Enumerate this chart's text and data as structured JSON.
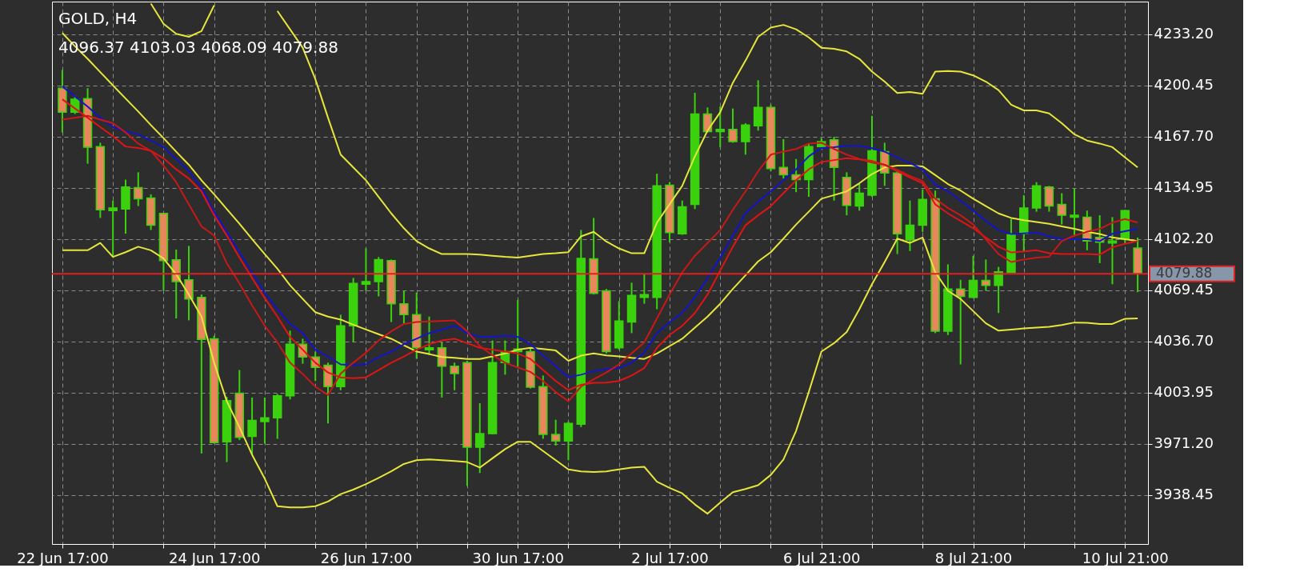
{
  "chart_data": {
    "type": "candlestick",
    "title": "GOLD, H4",
    "subtitle": "4096.37 4103.03 4068.09 4079.88",
    "categories": [
      "22 Jun 17:00",
      null,
      null,
      null,
      null,
      null,
      null,
      null,
      null,
      null,
      null,
      null,
      "24 Jun 17:00",
      null,
      null,
      null,
      null,
      null,
      null,
      null,
      null,
      null,
      null,
      null,
      "26 Jun 17:00",
      null,
      null,
      null,
      null,
      null,
      null,
      null,
      null,
      null,
      null,
      null,
      "30 Jun 17:00",
      null,
      null,
      null,
      null,
      null,
      null,
      null,
      null,
      null,
      null,
      null,
      "2 Jul 17:00",
      null,
      null,
      null,
      null,
      null,
      null,
      null,
      null,
      null,
      null,
      null,
      "6 Jul 21:00",
      null,
      null,
      null,
      null,
      null,
      null,
      null,
      null,
      null,
      null,
      null,
      "8 Jul 21:00",
      null,
      null,
      null,
      null,
      null,
      null,
      null,
      null,
      null,
      null,
      null,
      "10 Jul 21:00",
      null
    ],
    "ohlc": [
      [
        4198.6,
        4210.3,
        4170.3,
        4183.2
      ],
      [
        4183.2,
        4193.8,
        4182.1,
        4191.5
      ],
      [
        4192.0,
        4198.6,
        4150.3,
        4160.9
      ],
      [
        4161.3,
        4163.7,
        4115.6,
        4120.8
      ],
      [
        4120.3,
        4126.7,
        4091.4,
        4122.0
      ],
      [
        4121.3,
        4140.1,
        4105.5,
        4135.4
      ],
      [
        4135.0,
        4144.8,
        4123.2,
        4127.9
      ],
      [
        4128.4,
        4130.7,
        4107.9,
        4110.9
      ],
      [
        4118.5,
        4118.9,
        4069.0,
        4088.3
      ],
      [
        4088.8,
        4095.4,
        4051.3,
        4074.9
      ],
      [
        4076.0,
        4097.7,
        4050.1,
        4063.8
      ],
      [
        4064.7,
        4066.6,
        3964.9,
        4037.9
      ],
      [
        4038.3,
        4040.2,
        3971.2,
        3971.9
      ],
      [
        3972.4,
        4001.1,
        3959.4,
        3998.8
      ],
      [
        4003.5,
        4018.3,
        3973.5,
        3975.2
      ],
      [
        3975.9,
        4000.7,
        3964.1,
        3986.1
      ],
      [
        3985.3,
        4000.7,
        3971.2,
        3987.7
      ],
      [
        3987.7,
        4003.0,
        3974.3,
        4001.8
      ],
      [
        4001.8,
        4043.5,
        3999.5,
        4034.8
      ],
      [
        4034.8,
        4038.3,
        4022.3,
        4026.6
      ],
      [
        4026.6,
        4030.1,
        4011.3,
        4020.0
      ],
      [
        4021.4,
        4023.0,
        3984.2,
        4007.7
      ],
      [
        4007.7,
        4053.7,
        4005.4,
        4046.6
      ],
      [
        4046.6,
        4077.2,
        4036.0,
        4073.7
      ],
      [
        4073.2,
        4096.1,
        4069.0,
        4074.9
      ],
      [
        4074.9,
        4090.6,
        4065.4,
        4089.0
      ],
      [
        4088.3,
        4089.0,
        4049.0,
        4060.7
      ],
      [
        4060.7,
        4069.0,
        4047.8,
        4053.7
      ],
      [
        4053.7,
        4067.8,
        4025.4,
        4032.5
      ],
      [
        4031.3,
        4052.5,
        4027.8,
        4032.5
      ],
      [
        4032.5,
        4036.0,
        4000.7,
        4020.7
      ],
      [
        4020.7,
        4023.0,
        4005.4,
        4016.0
      ],
      [
        4023.0,
        4024.2,
        3944.1,
        3968.9
      ],
      [
        3968.9,
        3997.1,
        3952.4,
        3977.6
      ],
      [
        3977.6,
        4037.2,
        3977.1,
        4023.0
      ],
      [
        4023.0,
        4037.2,
        4015.3,
        4030.1
      ],
      [
        4030.1,
        4063.1,
        4019.5,
        4031.8
      ],
      [
        4030.1,
        4032.5,
        4006.5,
        4007.3
      ],
      [
        4007.7,
        4014.8,
        3974.3,
        3977.1
      ],
      [
        3977.1,
        3986.5,
        3970.0,
        3972.9
      ],
      [
        3972.9,
        3985.3,
        3960.6,
        3984.2
      ],
      [
        3983.7,
        4107.9,
        3981.8,
        4089.7
      ],
      [
        4089.5,
        4115.6,
        4066.6,
        4067.3
      ],
      [
        4069.0,
        4070.2,
        4028.9,
        4030.1
      ],
      [
        4032.5,
        4062.4,
        4031.3,
        4049.7
      ],
      [
        4049.0,
        4074.2,
        4041.9,
        4066.1
      ],
      [
        4064.7,
        4079.6,
        4060.7,
        4066.6
      ],
      [
        4064.7,
        4143.9,
        4057.2,
        4136.1
      ],
      [
        4136.6,
        4138.5,
        4100.1,
        4106.2
      ],
      [
        4105.5,
        4126.7,
        4104.8,
        4122.7
      ],
      [
        4124.3,
        4195.7,
        4121.3,
        4182.1
      ],
      [
        4182.1,
        4186.3,
        4170.3,
        4170.8
      ],
      [
        4170.8,
        4186.8,
        4160.9,
        4172.2
      ],
      [
        4172.2,
        4185.6,
        4163.7,
        4164.4
      ],
      [
        4164.4,
        4176.2,
        4156.1,
        4175.0
      ],
      [
        4174.5,
        4203.7,
        4171.5,
        4186.3
      ],
      [
        4186.3,
        4188.0,
        4145.5,
        4147.2
      ],
      [
        4147.9,
        4166.0,
        4140.8,
        4143.2
      ],
      [
        4143.2,
        4153.3,
        4132.1,
        4140.1
      ],
      [
        4140.1,
        4163.2,
        4129.1,
        4161.3
      ],
      [
        4161.3,
        4166.8,
        4159.7,
        4164.4
      ],
      [
        4165.6,
        4167.5,
        4126.7,
        4147.9
      ],
      [
        4141.5,
        4144.8,
        4117.3,
        4123.6
      ],
      [
        4123.2,
        4137.3,
        4120.3,
        4131.4
      ],
      [
        4130.2,
        4180.9,
        4129.1,
        4158.5
      ],
      [
        4158.0,
        4163.7,
        4136.1,
        4144.4
      ],
      [
        4144.4,
        4146.3,
        4092.5,
        4105.5
      ],
      [
        4101.5,
        4126.7,
        4094.4,
        4110.9
      ],
      [
        4110.9,
        4133.8,
        4106.7,
        4127.4
      ],
      [
        4127.9,
        4133.1,
        4041.9,
        4043.1
      ],
      [
        4043.1,
        4085.9,
        4040.7,
        4070.2
      ],
      [
        4070.2,
        4076.0,
        4021.9,
        4065.4
      ],
      [
        4064.7,
        4091.4,
        4064.3,
        4075.6
      ],
      [
        4075.6,
        4089.0,
        4069.0,
        4072.5
      ],
      [
        4072.5,
        4084.3,
        4054.8,
        4081.2
      ],
      [
        4080.8,
        4114.9,
        4080.8,
        4104.8
      ],
      [
        4105.5,
        4130.2,
        4093.7,
        4122.0
      ],
      [
        4122.0,
        4138.5,
        4119.6,
        4136.1
      ],
      [
        4135.4,
        4136.1,
        4119.6,
        4123.2
      ],
      [
        4124.3,
        4131.4,
        4111.4,
        4117.3
      ],
      [
        4116.1,
        4134.5,
        4104.3,
        4117.3
      ],
      [
        4116.1,
        4120.3,
        4094.9,
        4100.8
      ],
      [
        4103.1,
        4117.3,
        4086.7,
        4100.1
      ],
      [
        4099.6,
        4116.1,
        4073.2,
        4100.8
      ],
      [
        4102.0,
        4120.8,
        4099.6,
        4120.3
      ],
      [
        4096.37,
        4103.03,
        4068.09,
        4079.88
      ]
    ],
    "colors": [
      "#e8865c",
      "#3ad20c",
      "#e8865c",
      "#e8865c",
      "#3ad20c",
      "#3ad20c",
      "#e8865c",
      "#e8865c",
      "#e8865c",
      "#e8865c",
      "#e8865c",
      "#e8865c",
      "#e8865c",
      "#3ad20c",
      "#e8865c",
      "#3ad20c",
      "#3ad20c",
      "#3ad20c",
      "#3ad20c",
      "#e8865c",
      "#e8865c",
      "#e8865c",
      "#3ad20c",
      "#3ad20c",
      "#3ad20c",
      "#3ad20c",
      "#e8865c",
      "#e8865c",
      "#e8865c",
      "#3ad20c",
      "#e8865c",
      "#e8865c",
      "#e8865c",
      "#3ad20c",
      "#3ad20c",
      "#3ad20c",
      "#3ad20c",
      "#e8865c",
      "#e8865c",
      "#e8865c",
      "#3ad20c",
      "#3ad20c",
      "#e8865c",
      "#e8865c",
      "#3ad20c",
      "#3ad20c",
      "#3ad20c",
      "#3ad20c",
      "#e8865c",
      "#3ad20c",
      "#3ad20c",
      "#e8865c",
      "#3ad20c",
      "#e8865c",
      "#3ad20c",
      "#3ad20c",
      "#e8865c",
      "#e8865c",
      "#e8865c",
      "#3ad20c",
      "#3ad20c",
      "#e8865c",
      "#e8865c",
      "#3ad20c",
      "#3ad20c",
      "#e8865c",
      "#e8865c",
      "#3ad20c",
      "#3ad20c",
      "#e8865c",
      "#3ad20c",
      "#e8865c",
      "#3ad20c",
      "#e8865c",
      "#3ad20c",
      "#3ad20c",
      "#3ad20c",
      "#3ad20c",
      "#e8865c",
      "#e8865c",
      "#3ad20c",
      "#e8865c",
      "#e8865c",
      "#3ad20c",
      "#3ad20c",
      "#e8865c"
    ],
    "series": [
      {
        "type": "line",
        "color": "#e6e63c",
        "values": [
          null,
          null,
          null,
          null,
          null,
          null,
          null,
          4252.7,
          4239.8,
          4233.4,
          4231.5,
          4235.1,
          4251.6,
          null,
          null,
          null,
          null,
          4248.0,
          4236.3,
          4224.5,
          4204.4,
          4179.7,
          4156.1,
          4147.9,
          4139.7,
          4129.1,
          4118.5,
          4109.0,
          4100.8,
          4096.1,
          4092.5,
          4092.5,
          4092.5,
          4092.1,
          4091.4,
          4090.7,
          4090.2,
          4091.4,
          4092.5,
          4093.0,
          4093.7,
          4103.8,
          4106.7,
          4100.5,
          4096.1,
          4093.0,
          4093.0,
          4112.6,
          4124.3,
          4136.1,
          4155.0,
          4171.5,
          4183.2,
          4202.1,
          4216.2,
          4231.5,
          4237.4,
          4239.1,
          4236.3,
          4231.1,
          4224.5,
          4223.8,
          4222.1,
          4217.4,
          4209.2,
          4202.8,
          4195.5,
          4196.2,
          4195.0,
          4209.2,
          4209.6,
          4209.2,
          4206.8,
          4202.8,
          4197.4,
          4188.0,
          4184.4,
          4184.4,
          4182.5,
          4176.2,
          4169.1,
          4165.1,
          4163.2,
          4160.9,
          4154.3,
          4147.9
        ]
      },
      {
        "type": "line",
        "color": "#e6e63c",
        "values": [
          4233.9,
          4225.4,
          4217.4,
          4208.9,
          4200.4,
          4192.0,
          4183.7,
          4175.0,
          4166.7,
          4158.0,
          4149.6,
          4139.7,
          4130.7,
          4121.3,
          4111.9,
          4102.0,
          4092.5,
          4083.1,
          4072.5,
          4063.8,
          4055.3,
          4052.5,
          4050.6,
          4047.3,
          4044.2,
          4041.2,
          4038.3,
          4034.1,
          4030.1,
          4028.5,
          4026.6,
          4026.1,
          4025.4,
          4025.4,
          4027.0,
          4028.9,
          4031.3,
          4032.5,
          4031.8,
          4030.8,
          4024.2,
          4027.5,
          4028.9,
          4027.7,
          4027.0,
          4026.1,
          4025.4,
          4028.9,
          4033.6,
          4038.3,
          4045.4,
          4052.5,
          4060.7,
          4070.2,
          4078.9,
          4087.8,
          4093.7,
          4102.4,
          4111.4,
          4119.6,
          4127.9,
          4130.2,
          4132.6,
          4137.8,
          4143.7,
          4147.9,
          4149.1,
          4149.1,
          4148.6,
          4143.0,
          4137.3,
          4133.1,
          4127.9,
          4123.2,
          4118.5,
          4115.6,
          4114.2,
          4113.0,
          4111.9,
          4110.2,
          4108.6,
          4106.7,
          4105.3,
          4103.1,
          4102.0,
          4100.8
        ]
      },
      {
        "type": "line",
        "color": "#e6e63c",
        "values": [
          4094.9,
          4094.9,
          4094.9,
          4099.6,
          4090.7,
          4093.7,
          4097.2,
          4094.9,
          4089.7,
          4079.6,
          4066.6,
          4052.5,
          4023.0,
          3998.3,
          3981.8,
          3964.1,
          3948.8,
          3931.2,
          3930.4,
          3930.4,
          3931.2,
          3934.2,
          3938.9,
          3941.8,
          3945.3,
          3949.3,
          3953.5,
          3958.2,
          3960.6,
          3961.1,
          3960.6,
          3960.1,
          3959.4,
          3955.9,
          3961.8,
          3967.7,
          3972.4,
          3972.4,
          3966.5,
          3960.6,
          3954.7,
          3953.5,
          3953.1,
          3953.5,
          3954.7,
          3955.9,
          3956.4,
          3946.9,
          3942.9,
          3939.4,
          3932.3,
          3926.4,
          3933.5,
          3940.1,
          3942.2,
          3944.6,
          3951.2,
          3961.1,
          3979.4,
          4004.2,
          4030.1,
          4035.5,
          4042.6,
          4057.2,
          4073.2,
          4087.4,
          4102.4,
          4099.6,
          4103.1,
          4080.8,
          4069.0,
          4063.8,
          4056.0,
          4048.2,
          4043.5,
          4044.2,
          4044.9,
          4045.4,
          4045.9,
          4047.1,
          4048.7,
          4048.5,
          4047.8,
          4047.8,
          4051.1,
          4051.3
        ]
      },
      {
        "type": "line",
        "color": "#1414c8",
        "values": [
          4199.7,
          4193.4,
          4186.8,
          4179.7,
          4173.8,
          4170.8,
          4169.1,
          4165.1,
          4160.9,
          4153.3,
          4145.5,
          4134.9,
          4119.6,
          4106.7,
          4093.7,
          4080.8,
          4067.8,
          4057.2,
          4047.8,
          4041.9,
          4031.3,
          4027.0,
          4021.9,
          4021.4,
          4021.9,
          4026.6,
          4030.1,
          4034.8,
          4038.3,
          4041.9,
          4044.2,
          4046.6,
          4041.9,
          4039.5,
          4039.5,
          4040.2,
          4039.5,
          4034.8,
          4027.7,
          4020.7,
          4013.6,
          4015.3,
          4017.6,
          4019.0,
          4019.5,
          4023.0,
          4029.4,
          4041.9,
          4048.9,
          4054.8,
          4064.7,
          4077.2,
          4090.2,
          4104.3,
          4118.5,
          4126.0,
          4132.6,
          4139.7,
          4146.7,
          4155.0,
          4160.4,
          4160.9,
          4161.8,
          4161.8,
          4160.2,
          4158.0,
          4154.3,
          4150.7,
          4146.7,
          4136.8,
          4132.6,
          4126.7,
          4120.3,
          4113.7,
          4107.8,
          4105.3,
          4105.7,
          4106.2,
          4103.8,
          4102.0,
          4102.0,
          4102.0,
          4100.8,
          4105.5,
          4107.1,
          4108.6
        ]
      },
      {
        "type": "line",
        "color": "#e01414",
        "values": [
          4191.5,
          4185.6,
          4179.7,
          4173.8,
          4167.9,
          4161.3,
          4160.4,
          4158.5,
          4153.8,
          4146.7,
          4140.8,
          4132.6,
          4117.3,
          4104.3,
          4090.2,
          4077.2,
          4064.3,
          4052.5,
          4039.5,
          4031.3,
          4023.0,
          4016.7,
          4013.6,
          4013.1,
          4013.6,
          4018.3,
          4023.0,
          4027.0,
          4031.3,
          4034.8,
          4037.2,
          4038.3,
          4035.5,
          4032.5,
          4031.3,
          4030.1,
          4028.9,
          4025.4,
          4018.3,
          4011.3,
          4005.4,
          4008.9,
          4010.1,
          4010.3,
          4011.3,
          4014.8,
          4019.5,
          4032.5,
          4040.7,
          4046.6,
          4054.8,
          4066.6,
          4081.9,
          4097.2,
          4110.9,
          4117.3,
          4123.2,
          4131.4,
          4139.7,
          4146.7,
          4151.4,
          4152.6,
          4153.8,
          4153.1,
          4152.1,
          4149.6,
          4145.5,
          4141.5,
          4137.8,
          4124.3,
          4118.5,
          4113.7,
          4109.0,
          4103.1,
          4097.2,
          4093.5,
          4094.2,
          4094.9,
          4093.0,
          4092.5,
          4092.5,
          4092.5,
          4092.1,
          4096.8,
          4099.1,
          4100.8
        ]
      },
      {
        "type": "line",
        "color": "#c81818",
        "values": [
          4178.5,
          4179.7,
          4180.9,
          4178.5,
          4176.2,
          4170.3,
          4163.2,
          4158.5,
          4149.1,
          4138.5,
          4124.3,
          4110.2,
          4104.3,
          4086.6,
          4073.7,
          4059.6,
          4046.6,
          4036.0,
          4023.0,
          4015.8,
          4007.7,
          4002.3,
          4016.0,
          4023.0,
          4029.4,
          4037.2,
          4043.1,
          4047.8,
          4049.0,
          4049.4,
          4049.7,
          4050.1,
          4043.1,
          4033.6,
          4027.8,
          4023.0,
          4020.0,
          4017.1,
          4011.3,
          4004.2,
          3998.3,
          4007.7,
          4012.4,
          4016.7,
          4021.9,
          4028.9,
          4036.0,
          4051.3,
          4066.6,
          4080.8,
          4091.4,
          4099.6,
          4107.8,
          4120.8,
          4132.6,
          4145.5,
          4156.1,
          4158.0,
          4159.7,
          4163.2,
          4163.7,
          4159.7,
          4156.1,
          4153.3,
          4151.0,
          4149.6,
          4146.3,
          4142.5,
          4139.2,
          4127.9,
          4122.0,
          4117.3,
          4111.4,
          4102.0,
          4092.5,
          4087.4,
          4089.0,
          4090.2,
          4090.7,
          4100.8,
          4104.3,
          4106.7,
          4108.6,
          4112.6,
          4114.9,
          4112.6
        ]
      }
    ],
    "ylim": [
      3907,
      4254
    ],
    "yticks": [
      {
        "value": 3938.45,
        "label": "3938.45"
      },
      {
        "value": 3971.2,
        "label": "3971.20"
      },
      {
        "value": 4003.95,
        "label": "4003.95"
      },
      {
        "value": 4036.7,
        "label": "4036.70"
      },
      {
        "value": 4069.45,
        "label": "4069.45"
      },
      {
        "value": 4102.2,
        "label": "4102.20"
      },
      {
        "value": 4134.95,
        "label": "4134.95"
      },
      {
        "value": 4167.7,
        "label": "4167.70"
      },
      {
        "value": 4200.45,
        "label": "4200.45"
      },
      {
        "value": 4233.2,
        "label": "4233.20"
      }
    ],
    "ref_lines": [
      {
        "axis": "y",
        "value": 4079.88,
        "label": "4079.88",
        "color": "#e02020"
      }
    ],
    "grid": true
  }
}
